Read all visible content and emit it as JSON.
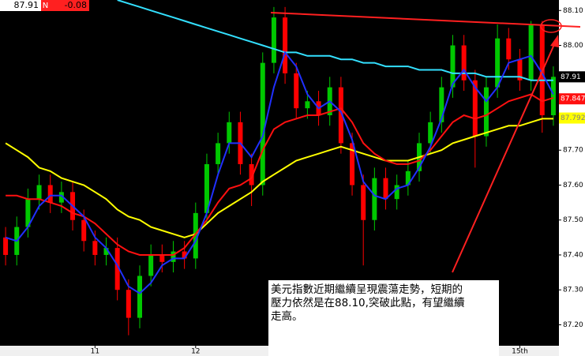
{
  "chart_data": {
    "type": "candlestick",
    "header": {
      "last_price": 87.91,
      "symbol": "N",
      "change": -0.08
    },
    "categories": [
      null,
      null,
      null,
      null,
      null,
      null,
      null,
      null,
      "11",
      null,
      null,
      null,
      null,
      null,
      null,
      null,
      null,
      "12",
      null,
      null,
      null,
      null,
      null,
      null,
      null,
      null,
      null,
      null,
      null,
      null,
      null,
      null,
      null,
      null,
      null,
      null,
      null,
      null,
      null,
      null,
      null,
      null,
      null,
      null,
      null,
      null,
      "15th",
      null,
      null,
      null
    ],
    "open": [
      87.45,
      87.4,
      87.48,
      87.56,
      87.6,
      87.55,
      87.58,
      87.5,
      87.44,
      87.4,
      87.42,
      87.3,
      87.22,
      87.34,
      87.4,
      87.38,
      87.41,
      87.39,
      87.52,
      87.66,
      87.72,
      87.78,
      87.66,
      87.6,
      87.95,
      88.08,
      87.92,
      87.82,
      87.84,
      87.8,
      87.88,
      87.72,
      87.6,
      87.5,
      87.62,
      87.56,
      87.6,
      87.64,
      87.72,
      87.78,
      87.88,
      88.0,
      87.9,
      87.74,
      87.88,
      88.02,
      87.96,
      87.9,
      88.06,
      87.8
    ],
    "high": [
      87.48,
      87.51,
      87.59,
      87.63,
      87.63,
      87.61,
      87.61,
      87.53,
      87.47,
      87.45,
      87.45,
      87.33,
      87.37,
      87.43,
      87.43,
      87.44,
      87.44,
      87.55,
      87.69,
      87.75,
      87.81,
      87.81,
      87.69,
      87.98,
      88.11,
      88.11,
      87.95,
      87.87,
      87.87,
      87.91,
      87.91,
      87.75,
      87.63,
      87.65,
      87.65,
      87.63,
      87.67,
      87.75,
      87.81,
      87.91,
      88.03,
      88.03,
      87.93,
      87.91,
      88.06,
      88.05,
      87.99,
      88.07,
      88.07,
      87.94
    ],
    "low": [
      87.37,
      87.37,
      87.45,
      87.53,
      87.52,
      87.52,
      87.47,
      87.41,
      87.37,
      87.37,
      87.27,
      87.17,
      87.19,
      87.31,
      87.35,
      87.35,
      87.36,
      87.36,
      87.49,
      87.63,
      87.69,
      87.63,
      87.54,
      87.57,
      87.92,
      87.89,
      87.79,
      87.79,
      87.77,
      87.77,
      87.69,
      87.57,
      87.37,
      87.47,
      87.53,
      87.53,
      87.57,
      87.61,
      87.69,
      87.75,
      87.85,
      87.87,
      87.65,
      87.71,
      87.85,
      87.93,
      87.87,
      87.87,
      87.75,
      87.77
    ],
    "close": [
      87.4,
      87.48,
      87.56,
      87.6,
      87.55,
      87.58,
      87.5,
      87.44,
      87.4,
      87.42,
      87.3,
      87.22,
      87.34,
      87.4,
      87.38,
      87.41,
      87.39,
      87.52,
      87.66,
      87.72,
      87.78,
      87.66,
      87.6,
      87.95,
      88.08,
      87.92,
      87.82,
      87.84,
      87.8,
      87.88,
      87.72,
      87.6,
      87.5,
      87.62,
      87.56,
      87.6,
      87.64,
      87.72,
      87.78,
      87.88,
      88.0,
      87.9,
      87.74,
      87.88,
      88.02,
      87.96,
      87.9,
      88.06,
      87.8,
      87.91
    ],
    "up_color": "#00c800",
    "down_color": "#ff0000",
    "series": [
      {
        "color": "#33e0ff",
        "values": [
          null,
          null,
          null,
          null,
          null,
          null,
          null,
          null,
          null,
          null,
          88.13,
          88.12,
          88.11,
          88.1,
          88.09,
          88.08,
          88.07,
          88.06,
          88.05,
          88.04,
          88.03,
          88.02,
          88.01,
          88.0,
          87.99,
          87.98,
          87.98,
          87.97,
          87.97,
          87.97,
          87.96,
          87.96,
          87.95,
          87.95,
          87.94,
          87.94,
          87.94,
          87.93,
          87.93,
          87.93,
          87.92,
          87.92,
          87.92,
          87.91,
          87.91,
          87.91,
          87.91,
          87.9,
          87.9,
          87.9
        ]
      },
      {
        "color": "#ffff00",
        "values": [
          87.72,
          87.7,
          87.68,
          87.65,
          87.64,
          87.62,
          87.61,
          87.6,
          87.58,
          87.56,
          87.53,
          87.51,
          87.5,
          87.48,
          87.47,
          87.46,
          87.45,
          87.46,
          87.49,
          87.52,
          87.54,
          87.56,
          87.58,
          87.61,
          87.63,
          87.65,
          87.67,
          87.68,
          87.69,
          87.7,
          87.71,
          87.7,
          87.69,
          87.68,
          87.67,
          87.67,
          87.67,
          87.68,
          87.69,
          87.7,
          87.72,
          87.73,
          87.74,
          87.75,
          87.76,
          87.77,
          87.77,
          87.78,
          87.79,
          87.79
        ]
      },
      {
        "color": "#ff1010",
        "values": [
          87.57,
          87.57,
          87.56,
          87.56,
          87.55,
          87.54,
          87.52,
          87.51,
          87.49,
          87.46,
          87.43,
          87.41,
          87.4,
          87.4,
          87.4,
          87.4,
          87.42,
          87.46,
          87.5,
          87.55,
          87.59,
          87.6,
          87.62,
          87.7,
          87.76,
          87.78,
          87.79,
          87.8,
          87.8,
          87.81,
          87.82,
          87.78,
          87.72,
          87.69,
          87.67,
          87.66,
          87.66,
          87.67,
          87.7,
          87.74,
          87.78,
          87.8,
          87.79,
          87.8,
          87.82,
          87.84,
          87.85,
          87.86,
          87.84,
          87.85
        ]
      },
      {
        "color": "#2030ff",
        "values": [
          87.45,
          87.44,
          87.48,
          87.54,
          87.57,
          87.57,
          87.54,
          87.51,
          87.45,
          87.42,
          87.37,
          87.31,
          87.29,
          87.32,
          87.37,
          87.39,
          87.39,
          87.44,
          87.52,
          87.63,
          87.72,
          87.72,
          87.68,
          87.74,
          87.88,
          87.98,
          87.94,
          87.86,
          87.82,
          87.84,
          87.81,
          87.73,
          87.61,
          87.57,
          87.56,
          87.59,
          87.6,
          87.65,
          87.71,
          87.79,
          87.89,
          87.93,
          87.88,
          87.84,
          87.88,
          87.95,
          87.96,
          87.97,
          87.92,
          87.86
        ]
      }
    ],
    "ylim": [
      87.14,
      88.13
    ],
    "yticks": [
      {
        "value": 88.1,
        "label": "88.10"
      },
      {
        "value": 88,
        "label": "88.00"
      },
      {
        "value": 87.7,
        "label": "87.70"
      },
      {
        "value": 87.6,
        "label": "87.60"
      },
      {
        "value": 87.5,
        "label": "87.50"
      },
      {
        "value": 87.4,
        "label": "87.40"
      },
      {
        "value": 87.3,
        "label": "87.30"
      },
      {
        "value": 87.2,
        "label": "87.20"
      }
    ],
    "value_tags": [
      {
        "value": 87.91,
        "label": "87.91",
        "color": "#000000",
        "text_color": "#ffffff"
      },
      {
        "value": 87.847,
        "label": "87.847",
        "color": "#ff1010",
        "text_color": "#ffffff"
      },
      {
        "value": 87.792,
        "label": "87.792",
        "color": "#ffff00",
        "text_color": "#808080"
      }
    ],
    "annotation": [
      "美元指數近期繼續呈現震蕩走勢，短期的",
      "壓力依然是在88.10,突破此點，有望繼續",
      "走高。"
    ]
  }
}
